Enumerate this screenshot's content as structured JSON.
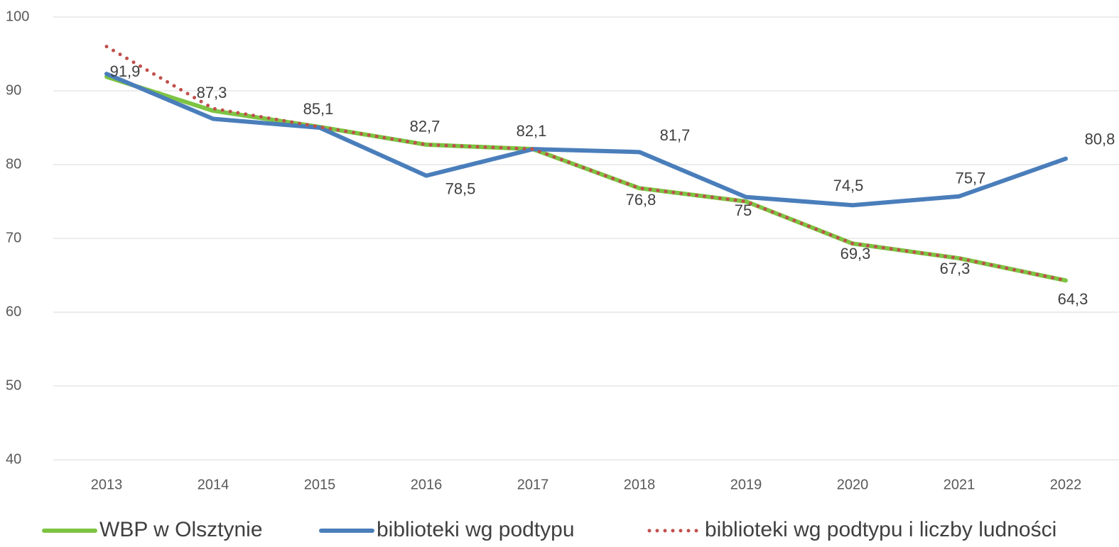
{
  "chart_data": {
    "type": "line",
    "categories": [
      "2013",
      "2014",
      "2015",
      "2016",
      "2017",
      "2018",
      "2019",
      "2020",
      "2021",
      "2022"
    ],
    "series": [
      {
        "name": "WBP w Olsztynie",
        "color": "#7dc443",
        "style": "solid",
        "values": [
          91.9,
          87.3,
          85.1,
          82.7,
          82.1,
          76.8,
          75,
          69.3,
          67.3,
          64.3
        ],
        "value_labels": [
          "91,9",
          "87,3",
          "85,1",
          "82,7",
          "82,1",
          "76,8",
          "75",
          "69,3",
          "67,3",
          "64,3"
        ]
      },
      {
        "name": "biblioteki wg podtypu",
        "color": "#4a7ebb",
        "style": "solid",
        "values": [
          92.3,
          86.2,
          85.0,
          78.5,
          82.1,
          81.7,
          75.6,
          74.5,
          75.7,
          80.8
        ],
        "value_labels": [
          null,
          null,
          null,
          "78,5",
          null,
          "81,7",
          null,
          "74,5",
          "75,7",
          "80,8"
        ]
      },
      {
        "name": "biblioteki wg podtypu i liczby ludności",
        "color": "#c0504d",
        "style": "dotted",
        "values": [
          96.0,
          87.6,
          85.1,
          82.7,
          82.1,
          76.8,
          75,
          69.3,
          67.3,
          64.3
        ]
      }
    ],
    "ylim": [
      40,
      100
    ],
    "yticks": [
      40,
      50,
      60,
      70,
      80,
      90,
      100
    ],
    "grid": true,
    "legend": "bottom"
  }
}
